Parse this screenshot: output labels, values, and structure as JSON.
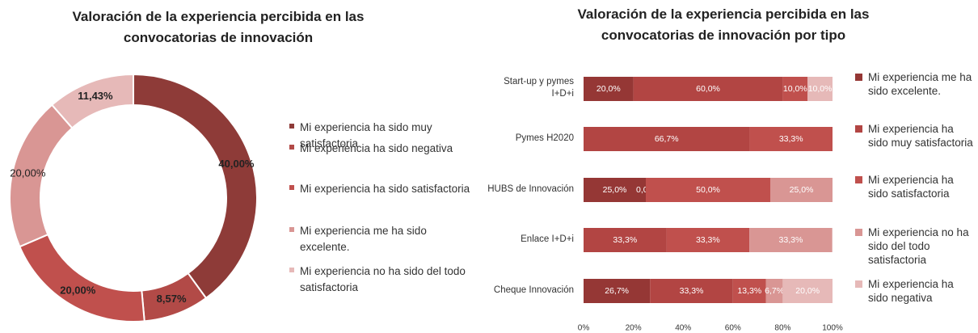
{
  "chart_data": [
    {
      "type": "donut",
      "title": "Valoración de la experiencia percibida en las convocatorias de innovación",
      "categories": [
        "Mi experiencia ha sido muy satisfactoria",
        "Mi experiencia ha sido negativa",
        "Mi experiencia ha sido satisfactoria",
        "Mi experiencia me ha sido excelente.",
        "Mi experiencia no ha sido del todo satisfactoria"
      ],
      "values": [
        40,
        8.57,
        20,
        20,
        11.43
      ],
      "value_labels": [
        "40,00%",
        "8,57%",
        "20,00%",
        "20,00%",
        "11,43%"
      ],
      "colors": [
        "#8e3b38",
        "#b24a47",
        "#c0504d",
        "#d99694",
        "#e6b9b8"
      ]
    },
    {
      "type": "stacked_barh",
      "title": "Valoración de la experiencia percibida en las convocatorias de innovación por tipo",
      "categories": [
        "Start-up y pymes I+D+i",
        "Pymes H2020",
        "HUBS de Innovación",
        "Enlace I+D+i",
        "Cheque Innovación"
      ],
      "series": [
        {
          "name": "Mi experiencia me ha sido excelente.",
          "color": "#953735",
          "values": [
            20,
            null,
            25,
            null,
            26.7
          ],
          "value_labels": [
            "20,0%",
            null,
            "25,0%",
            null,
            "26,7%"
          ]
        },
        {
          "name": "Mi experiencia ha sido muy satisfactoria",
          "color": "#b24543",
          "values": [
            60,
            66.7,
            0,
            33.3,
            33.3
          ],
          "value_labels": [
            "60,0%",
            "66,7%",
            "0,0%",
            "33,3%",
            "33,3%"
          ]
        },
        {
          "name": "Mi experiencia ha sido satisfactoria",
          "color": "#c0504d",
          "values": [
            10,
            33.3,
            50,
            33.3,
            13.3
          ],
          "value_labels": [
            "10,0%",
            "33,3%",
            "50,0%",
            "33,3%",
            "13,3%"
          ]
        },
        {
          "name": "Mi experiencia no ha sido del todo satisfactoria",
          "color": "#d99694",
          "values": [
            null,
            null,
            25,
            33.3,
            6.7
          ],
          "value_labels": [
            null,
            null,
            "25,0%",
            "33,3%",
            "6,7%"
          ]
        },
        {
          "name": "Mi experiencia ha sido negativa",
          "color": "#e6b9b8",
          "values": [
            10,
            null,
            null,
            null,
            20
          ],
          "value_labels": [
            "10,0%",
            null,
            null,
            null,
            "20,0%"
          ]
        }
      ],
      "xlim": [
        0,
        100
      ],
      "xticks": [
        {
          "value": 0,
          "label": "0%"
        },
        {
          "value": 20,
          "label": "20%"
        },
        {
          "value": 40,
          "label": "40%"
        },
        {
          "value": 60,
          "label": "60%"
        },
        {
          "value": 80,
          "label": "80%"
        },
        {
          "value": 100,
          "label": "100%"
        }
      ]
    }
  ]
}
